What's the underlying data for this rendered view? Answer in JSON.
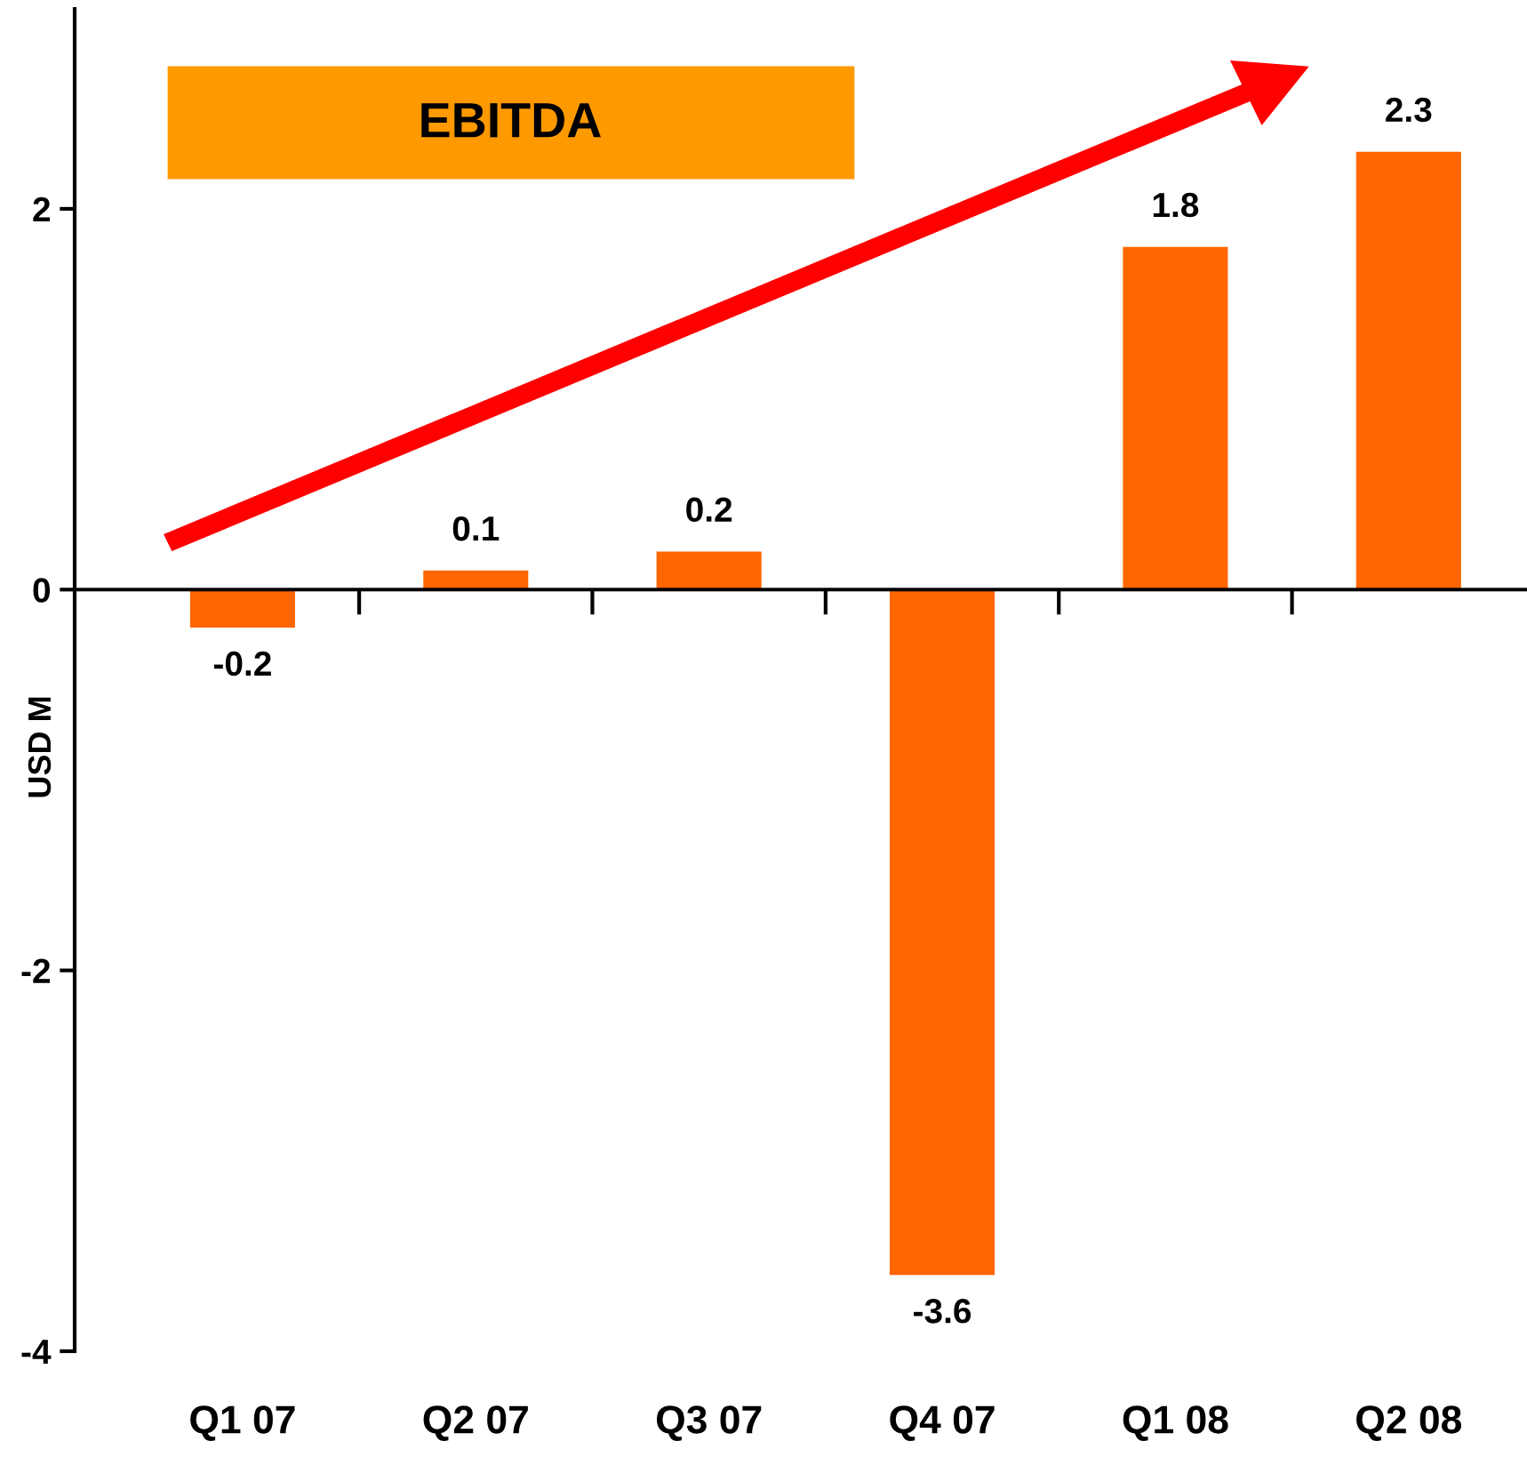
{
  "chart_data": {
    "type": "bar",
    "title": "EBITDA",
    "ylabel": "USD M",
    "categories": [
      "Q1 07",
      "Q2 07",
      "Q3 07",
      "Q4 07",
      "Q1 08",
      "Q2 08"
    ],
    "values": [
      -0.2,
      0.1,
      0.2,
      -3.6,
      1.8,
      2.3
    ],
    "color": "#ff6600",
    "ylim": [
      -4,
      3.05
    ],
    "yticks": [
      -4,
      -2,
      0,
      2
    ],
    "data_labels": true
  }
}
